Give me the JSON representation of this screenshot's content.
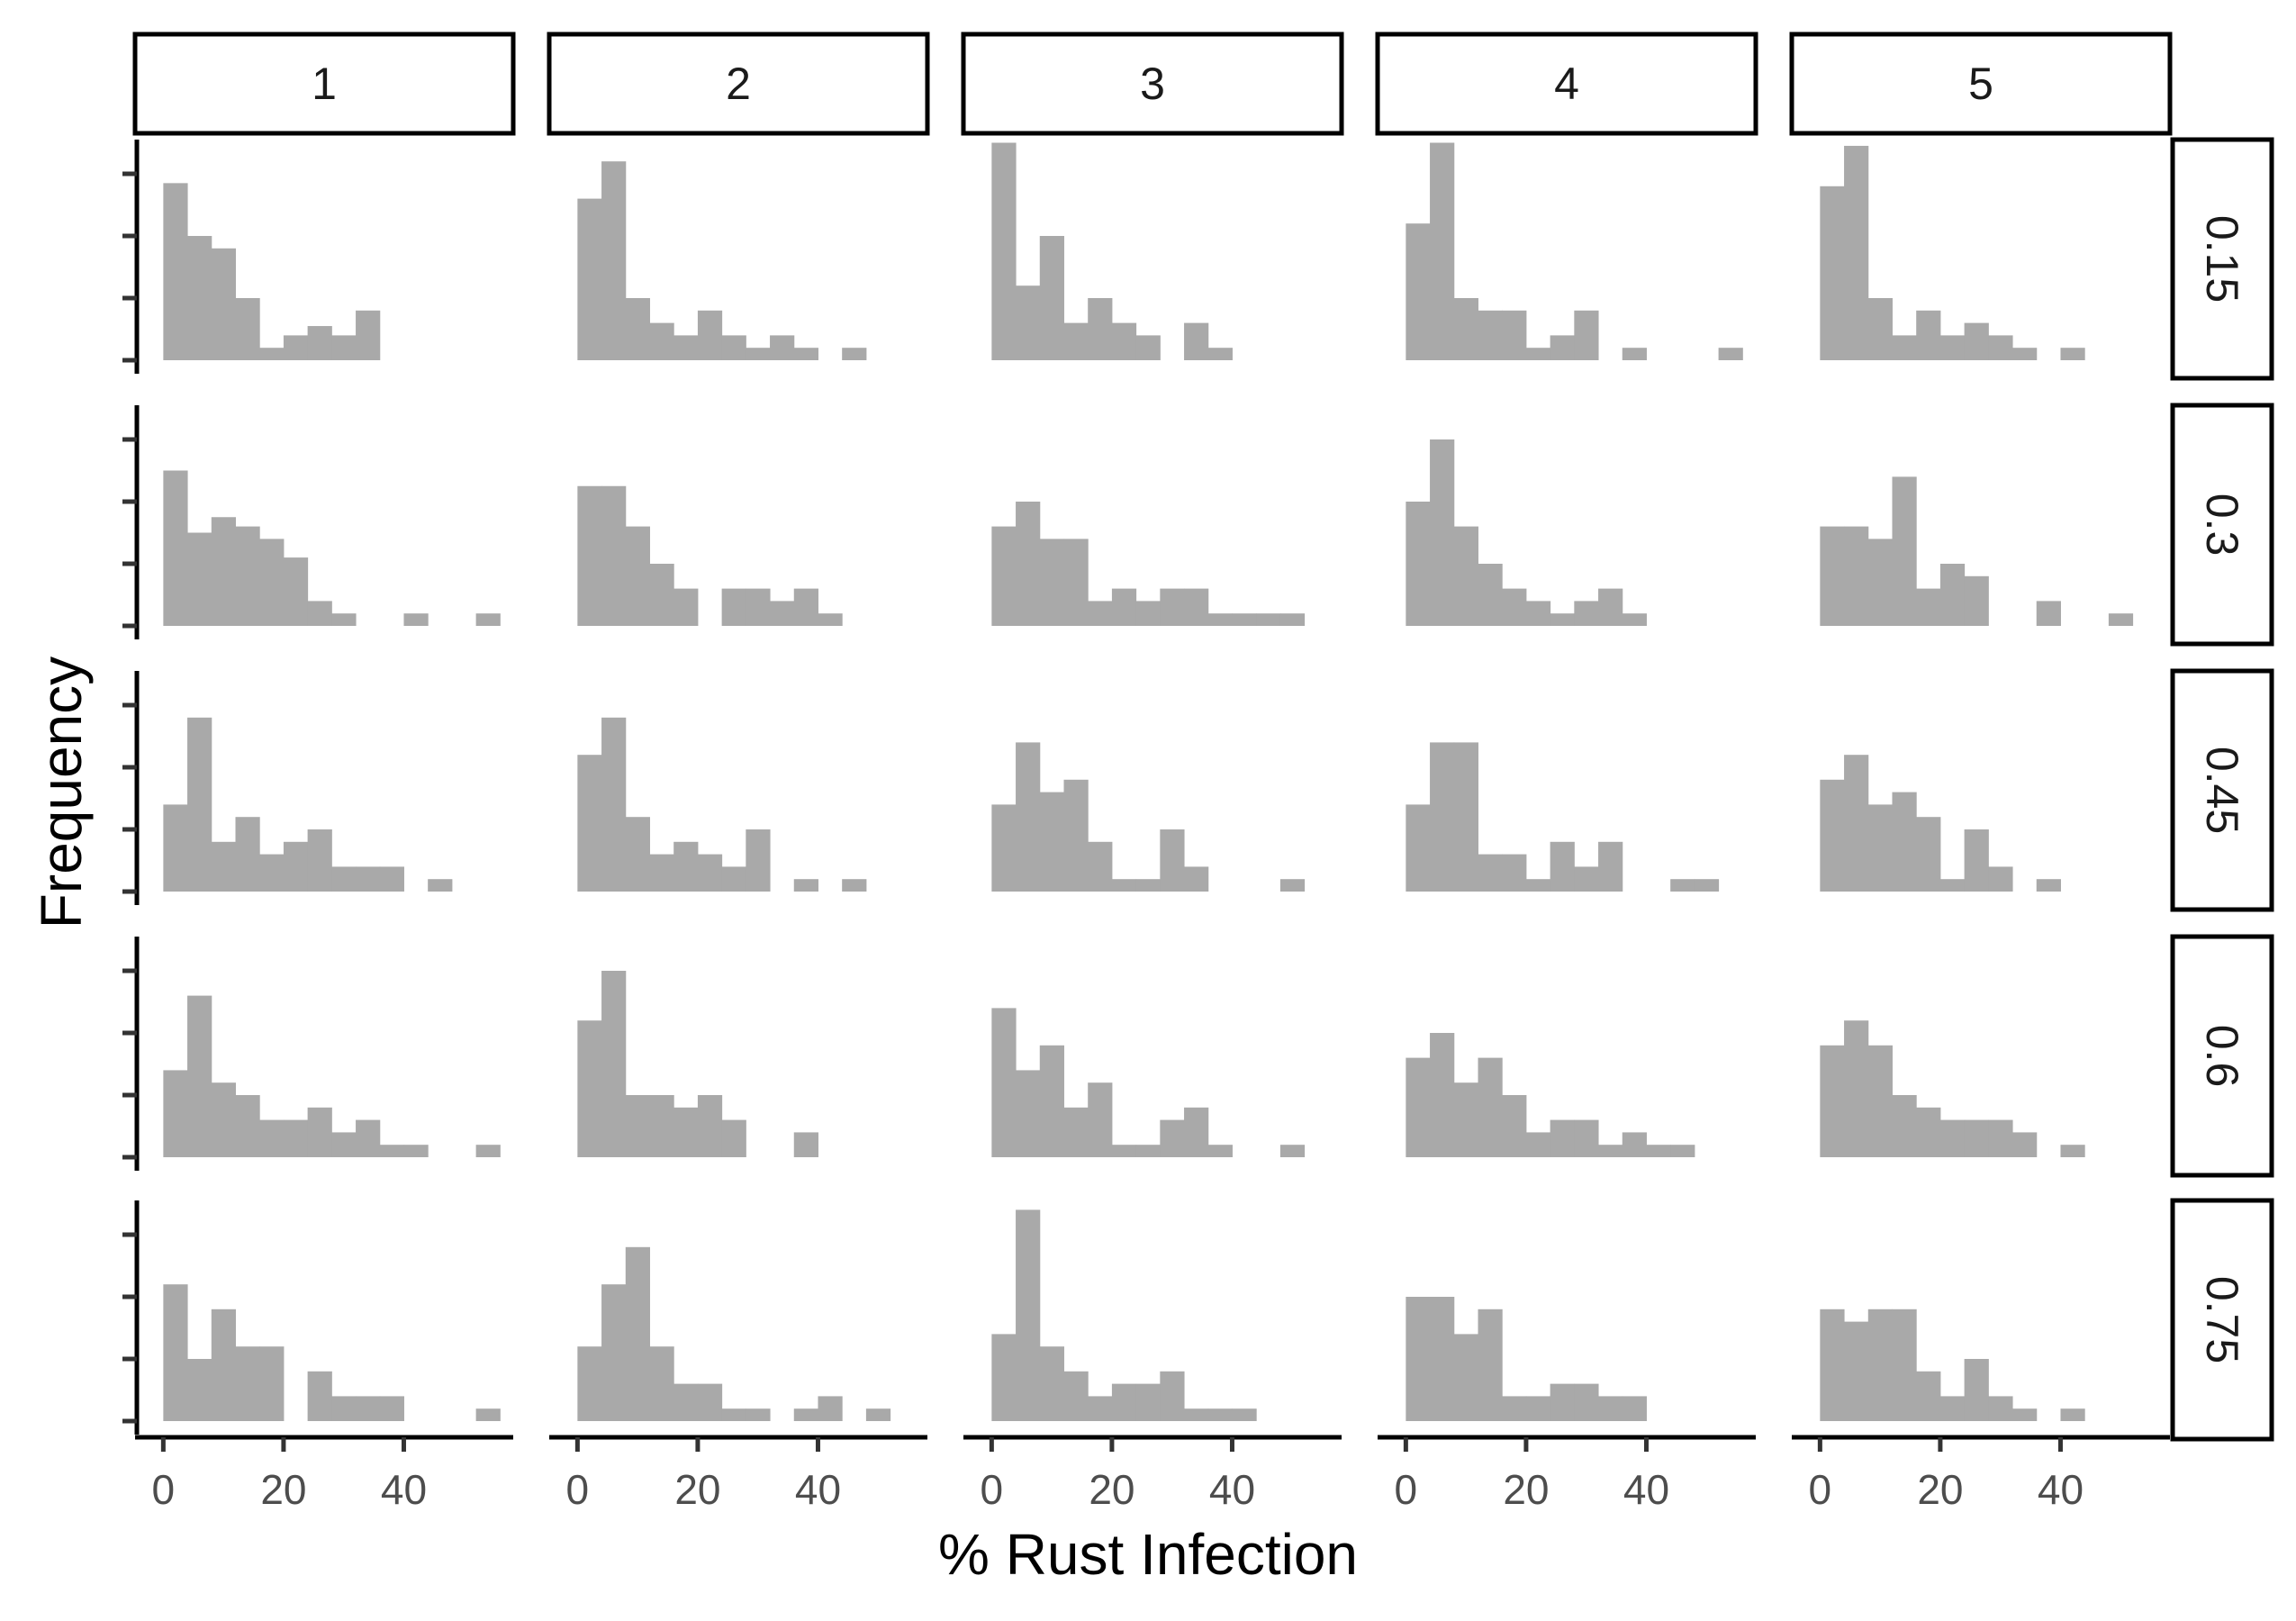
{
  "chart_data": {
    "type": "bar",
    "subtype": "faceted-histogram",
    "xlabel": "% Rust Infection",
    "ylabel": "Frequency",
    "col_facet_labels": [
      "1",
      "2",
      "3",
      "4",
      "5"
    ],
    "row_facet_labels": [
      "0.15",
      "0.3",
      "0.45",
      "0.6",
      "0.75"
    ],
    "xlim": [
      -2,
      57
    ],
    "x_ticks": [
      0,
      20,
      40
    ],
    "x_tick_labels": [
      "0",
      "20",
      "40"
    ],
    "y_ticks": [
      0,
      1,
      2,
      3
    ],
    "y_tick_labels": [],
    "bin_width": 4,
    "bar_color": "#a9a9a9",
    "grid": false,
    "panels": [
      [
        {
          "row": "0.15",
          "col": "1",
          "bins": [
            [
              0,
              2.85
            ],
            [
              4,
              2.0
            ],
            [
              8,
              1.8
            ],
            [
              12,
              1.0
            ],
            [
              16,
              0.2
            ],
            [
              20,
              0.4
            ],
            [
              24,
              0.55
            ],
            [
              28,
              0.4
            ],
            [
              32,
              0.8
            ]
          ]
        },
        {
          "row": "0.15",
          "col": "2",
          "bins": [
            [
              0,
              2.6
            ],
            [
              4,
              3.2
            ],
            [
              8,
              1.0
            ],
            [
              12,
              0.6
            ],
            [
              16,
              0.4
            ],
            [
              20,
              0.8
            ],
            [
              24,
              0.4
            ],
            [
              28,
              0.2
            ],
            [
              32,
              0.4
            ],
            [
              36,
              0.2
            ],
            [
              44,
              0.2
            ]
          ]
        },
        {
          "row": "0.15",
          "col": "3",
          "bins": [
            [
              0,
              3.5
            ],
            [
              4,
              1.2
            ],
            [
              8,
              2.0
            ],
            [
              12,
              0.6
            ],
            [
              16,
              1.0
            ],
            [
              20,
              0.6
            ],
            [
              24,
              0.4
            ],
            [
              32,
              0.6
            ],
            [
              36,
              0.2
            ]
          ]
        },
        {
          "row": "0.15",
          "col": "4",
          "bins": [
            [
              0,
              2.2
            ],
            [
              4,
              3.5
            ],
            [
              8,
              1.0
            ],
            [
              12,
              0.8
            ],
            [
              16,
              0.8
            ],
            [
              20,
              0.2
            ],
            [
              24,
              0.4
            ],
            [
              28,
              0.8
            ],
            [
              36,
              0.2
            ],
            [
              52,
              0.2
            ]
          ]
        },
        {
          "row": "0.15",
          "col": "5",
          "bins": [
            [
              0,
              2.8
            ],
            [
              4,
              3.45
            ],
            [
              8,
              1.0
            ],
            [
              12,
              0.4
            ],
            [
              16,
              0.8
            ],
            [
              20,
              0.4
            ],
            [
              24,
              0.6
            ],
            [
              28,
              0.4
            ],
            [
              32,
              0.2
            ],
            [
              40,
              0.2
            ]
          ]
        }
      ],
      [
        {
          "row": "0.3",
          "col": "1",
          "bins": [
            [
              0,
              2.5
            ],
            [
              4,
              1.5
            ],
            [
              8,
              1.75
            ],
            [
              12,
              1.6
            ],
            [
              16,
              1.4
            ],
            [
              20,
              1.1
            ],
            [
              24,
              0.4
            ],
            [
              28,
              0.2
            ],
            [
              40,
              0.2
            ],
            [
              52,
              0.2
            ]
          ]
        },
        {
          "row": "0.3",
          "col": "2",
          "bins": [
            [
              0,
              2.25
            ],
            [
              4,
              2.25
            ],
            [
              8,
              1.6
            ],
            [
              12,
              1.0
            ],
            [
              16,
              0.6
            ],
            [
              24,
              0.6
            ],
            [
              28,
              0.6
            ],
            [
              32,
              0.4
            ],
            [
              36,
              0.6
            ],
            [
              40,
              0.2
            ]
          ]
        },
        {
          "row": "0.3",
          "col": "3",
          "bins": [
            [
              0,
              1.6
            ],
            [
              4,
              2.0
            ],
            [
              8,
              1.4
            ],
            [
              12,
              1.4
            ],
            [
              16,
              0.4
            ],
            [
              20,
              0.6
            ],
            [
              24,
              0.4
            ],
            [
              28,
              0.6
            ],
            [
              32,
              0.6
            ],
            [
              36,
              0.2
            ],
            [
              40,
              0.2
            ],
            [
              44,
              0.2
            ],
            [
              48,
              0.2
            ]
          ]
        },
        {
          "row": "0.3",
          "col": "4",
          "bins": [
            [
              0,
              2.0
            ],
            [
              4,
              3.0
            ],
            [
              8,
              1.6
            ],
            [
              12,
              1.0
            ],
            [
              16,
              0.6
            ],
            [
              20,
              0.4
            ],
            [
              24,
              0.2
            ],
            [
              28,
              0.4
            ],
            [
              32,
              0.6
            ],
            [
              36,
              0.2
            ]
          ]
        },
        {
          "row": "0.3",
          "col": "5",
          "bins": [
            [
              0,
              1.6
            ],
            [
              4,
              1.6
            ],
            [
              8,
              1.4
            ],
            [
              12,
              2.4
            ],
            [
              16,
              0.6
            ],
            [
              20,
              1.0
            ],
            [
              24,
              0.8
            ],
            [
              36,
              0.4
            ],
            [
              48,
              0.2
            ]
          ]
        }
      ],
      [
        {
          "row": "0.45",
          "col": "1",
          "bins": [
            [
              0,
              1.4
            ],
            [
              4,
              2.8
            ],
            [
              8,
              0.8
            ],
            [
              12,
              1.2
            ],
            [
              16,
              0.6
            ],
            [
              20,
              0.8
            ],
            [
              24,
              1.0
            ],
            [
              28,
              0.4
            ],
            [
              32,
              0.4
            ],
            [
              36,
              0.4
            ],
            [
              44,
              0.2
            ]
          ]
        },
        {
          "row": "0.45",
          "col": "2",
          "bins": [
            [
              0,
              2.2
            ],
            [
              4,
              2.8
            ],
            [
              8,
              1.2
            ],
            [
              12,
              0.6
            ],
            [
              16,
              0.8
            ],
            [
              20,
              0.6
            ],
            [
              24,
              0.4
            ],
            [
              28,
              1.0
            ],
            [
              36,
              0.2
            ],
            [
              44,
              0.2
            ]
          ]
        },
        {
          "row": "0.45",
          "col": "3",
          "bins": [
            [
              0,
              1.4
            ],
            [
              4,
              2.4
            ],
            [
              8,
              1.6
            ],
            [
              12,
              1.8
            ],
            [
              16,
              0.8
            ],
            [
              20,
              0.2
            ],
            [
              24,
              0.2
            ],
            [
              28,
              1.0
            ],
            [
              32,
              0.4
            ],
            [
              48,
              0.2
            ]
          ]
        },
        {
          "row": "0.45",
          "col": "4",
          "bins": [
            [
              0,
              1.4
            ],
            [
              4,
              2.4
            ],
            [
              8,
              2.4
            ],
            [
              12,
              0.6
            ],
            [
              16,
              0.6
            ],
            [
              20,
              0.2
            ],
            [
              24,
              0.8
            ],
            [
              28,
              0.4
            ],
            [
              32,
              0.8
            ],
            [
              44,
              0.2
            ],
            [
              48,
              0.2
            ]
          ]
        },
        {
          "row": "0.45",
          "col": "5",
          "bins": [
            [
              0,
              1.8
            ],
            [
              4,
              2.2
            ],
            [
              8,
              1.4
            ],
            [
              12,
              1.6
            ],
            [
              16,
              1.2
            ],
            [
              20,
              0.2
            ],
            [
              24,
              1.0
            ],
            [
              28,
              0.4
            ],
            [
              36,
              0.2
            ]
          ]
        }
      ],
      [
        {
          "row": "0.6",
          "col": "1",
          "bins": [
            [
              0,
              1.4
            ],
            [
              4,
              2.6
            ],
            [
              8,
              1.2
            ],
            [
              12,
              1.0
            ],
            [
              16,
              0.6
            ],
            [
              20,
              0.6
            ],
            [
              24,
              0.8
            ],
            [
              28,
              0.4
            ],
            [
              32,
              0.6
            ],
            [
              36,
              0.2
            ],
            [
              40,
              0.2
            ],
            [
              52,
              0.2
            ]
          ]
        },
        {
          "row": "0.6",
          "col": "2",
          "bins": [
            [
              0,
              2.2
            ],
            [
              4,
              3.0
            ],
            [
              8,
              1.0
            ],
            [
              12,
              1.0
            ],
            [
              16,
              0.8
            ],
            [
              20,
              1.0
            ],
            [
              24,
              0.6
            ],
            [
              36,
              0.4
            ]
          ]
        },
        {
          "row": "0.6",
          "col": "3",
          "bins": [
            [
              0,
              2.4
            ],
            [
              4,
              1.4
            ],
            [
              8,
              1.8
            ],
            [
              12,
              0.8
            ],
            [
              16,
              1.2
            ],
            [
              20,
              0.2
            ],
            [
              24,
              0.2
            ],
            [
              28,
              0.6
            ],
            [
              32,
              0.8
            ],
            [
              36,
              0.2
            ],
            [
              48,
              0.2
            ]
          ]
        },
        {
          "row": "0.6",
          "col": "4",
          "bins": [
            [
              0,
              1.6
            ],
            [
              4,
              2.0
            ],
            [
              8,
              1.2
            ],
            [
              12,
              1.6
            ],
            [
              16,
              1.0
            ],
            [
              20,
              0.4
            ],
            [
              24,
              0.6
            ],
            [
              28,
              0.6
            ],
            [
              32,
              0.2
            ],
            [
              36,
              0.4
            ],
            [
              40,
              0.2
            ],
            [
              44,
              0.2
            ]
          ]
        },
        {
          "row": "0.6",
          "col": "5",
          "bins": [
            [
              0,
              1.8
            ],
            [
              4,
              2.2
            ],
            [
              8,
              1.8
            ],
            [
              12,
              1.0
            ],
            [
              16,
              0.8
            ],
            [
              20,
              0.6
            ],
            [
              24,
              0.6
            ],
            [
              28,
              0.6
            ],
            [
              32,
              0.4
            ],
            [
              40,
              0.2
            ]
          ]
        }
      ],
      [
        {
          "row": "0.75",
          "col": "1",
          "bins": [
            [
              0,
              2.2
            ],
            [
              4,
              1.0
            ],
            [
              8,
              1.8
            ],
            [
              12,
              1.2
            ],
            [
              16,
              1.2
            ],
            [
              24,
              0.8
            ],
            [
              28,
              0.4
            ],
            [
              32,
              0.4
            ],
            [
              36,
              0.4
            ],
            [
              52,
              0.2
            ]
          ]
        },
        {
          "row": "0.75",
          "col": "2",
          "bins": [
            [
              0,
              1.2
            ],
            [
              4,
              2.2
            ],
            [
              8,
              2.8
            ],
            [
              12,
              1.2
            ],
            [
              16,
              0.6
            ],
            [
              20,
              0.6
            ],
            [
              24,
              0.2
            ],
            [
              28,
              0.2
            ],
            [
              36,
              0.2
            ],
            [
              40,
              0.4
            ],
            [
              48,
              0.2
            ]
          ]
        },
        {
          "row": "0.75",
          "col": "3",
          "bins": [
            [
              0,
              1.4
            ],
            [
              4,
              3.4
            ],
            [
              8,
              1.2
            ],
            [
              12,
              0.8
            ],
            [
              16,
              0.4
            ],
            [
              20,
              0.6
            ],
            [
              24,
              0.6
            ],
            [
              28,
              0.8
            ],
            [
              32,
              0.2
            ],
            [
              36,
              0.2
            ],
            [
              40,
              0.2
            ]
          ]
        },
        {
          "row": "0.75",
          "col": "4",
          "bins": [
            [
              0,
              2.0
            ],
            [
              4,
              2.0
            ],
            [
              8,
              1.4
            ],
            [
              12,
              1.8
            ],
            [
              16,
              0.4
            ],
            [
              20,
              0.4
            ],
            [
              24,
              0.6
            ],
            [
              28,
              0.6
            ],
            [
              32,
              0.4
            ],
            [
              36,
              0.4
            ]
          ]
        },
        {
          "row": "0.75",
          "col": "5",
          "bins": [
            [
              0,
              1.8
            ],
            [
              4,
              1.6
            ],
            [
              8,
              1.8
            ],
            [
              12,
              1.8
            ],
            [
              16,
              0.8
            ],
            [
              20,
              0.4
            ],
            [
              24,
              1.0
            ],
            [
              28,
              0.4
            ],
            [
              32,
              0.2
            ],
            [
              40,
              0.2
            ]
          ]
        }
      ]
    ]
  }
}
